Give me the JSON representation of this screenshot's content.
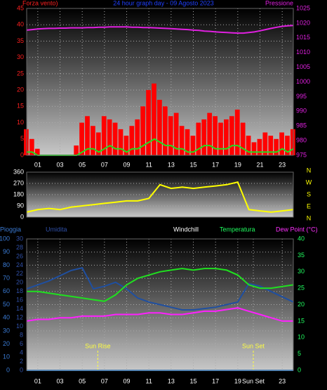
{
  "chart_data": [
    {
      "type": "line",
      "title": "24 hour graph day - 09 Agosto 2023",
      "ylabel": "Forza vento)",
      "y2label": "Pressione",
      "x": [
        0,
        0.5,
        1,
        1.5,
        2,
        2.5,
        3,
        3.5,
        4,
        4.5,
        5,
        5.5,
        6,
        6.5,
        7,
        7.5,
        8,
        8.5,
        9,
        9.5,
        10,
        10.5,
        11,
        11.5,
        12,
        12.5,
        13,
        13.5,
        14,
        14.5,
        15,
        15.5,
        16,
        16.5,
        17,
        17.5,
        18,
        18.5,
        19,
        19.5,
        20,
        20.5,
        21,
        21.5,
        22,
        22.5,
        23,
        23.5,
        24
      ],
      "xlim": [
        0,
        24
      ],
      "xticks": [
        {
          "value": 1,
          "label": "01"
        },
        {
          "value": 3,
          "label": "03"
        },
        {
          "value": 5,
          "label": "05"
        },
        {
          "value": 7,
          "label": "07"
        },
        {
          "value": 9,
          "label": "09"
        },
        11,
        13,
        15,
        17,
        19,
        21,
        23
      ],
      "ylim": [
        0,
        45
      ],
      "yticks": [
        0,
        5,
        10,
        15,
        20,
        25,
        30,
        35,
        40,
        45
      ],
      "ycolor": "#ff2020",
      "y2lim": [
        975,
        1025
      ],
      "y2ticks": [
        975,
        980,
        985,
        990,
        995,
        1000,
        1005,
        1010,
        1015,
        1020,
        1025
      ],
      "y2color": "#e020e0",
      "grid": true,
      "series": [
        {
          "color": "#ff0000",
          "style": "bars",
          "values": [
            8,
            5,
            2,
            0,
            0,
            0,
            0,
            0,
            0,
            3,
            10,
            12,
            9,
            7,
            12,
            11,
            10,
            8,
            6,
            9,
            11,
            15,
            20,
            22,
            17,
            15,
            12,
            13,
            9,
            8,
            6,
            10,
            11,
            13,
            12,
            10,
            11,
            12,
            14,
            10,
            6,
            4,
            5,
            7,
            6,
            5,
            7,
            6,
            8
          ]
        },
        {
          "color": "#20e020",
          "style": "line",
          "values": [
            1,
            1,
            0,
            0,
            0,
            0,
            0,
            0,
            0,
            0,
            1,
            2,
            2,
            1,
            2,
            3,
            2,
            2,
            1,
            2,
            2,
            3,
            4,
            5,
            4,
            3,
            3,
            2,
            2,
            1,
            1,
            2,
            3,
            3,
            2,
            2,
            2,
            3,
            3,
            2,
            1,
            1,
            1,
            1,
            1,
            1,
            2,
            1,
            2
          ]
        },
        {
          "color": "#e020e0",
          "style": "line",
          "axis": "y2",
          "values": [
            1017.6,
            1017.8,
            1018.0,
            1018.1,
            1018.2,
            1018.2,
            1018.3,
            1018.3,
            1018.4,
            1018.4,
            1018.4,
            1018.5,
            1018.5,
            1018.6,
            1018.6,
            1018.7,
            1018.7,
            1018.7,
            1018.7,
            1018.6,
            1018.6,
            1018.5,
            1018.5,
            1018.4,
            1018.3,
            1018.2,
            1018.1,
            1018.0,
            1017.9,
            1017.8,
            1017.6,
            1017.5,
            1017.3,
            1017.2,
            1017.0,
            1016.9,
            1016.8,
            1016.7,
            1016.6,
            1016.6,
            1016.8,
            1017.0,
            1017.4,
            1017.8,
            1018.2,
            1018.6,
            1018.9,
            1019.1,
            1019.2
          ]
        }
      ]
    },
    {
      "type": "line",
      "direction_labels": [
        "N",
        "W",
        "S",
        "E",
        "N"
      ],
      "x": [
        0,
        1,
        2,
        3,
        4,
        5,
        6,
        7,
        8,
        9,
        10,
        11,
        12,
        13,
        14,
        15,
        16,
        17,
        18,
        19,
        20,
        21,
        22,
        23,
        24
      ],
      "xlim": [
        0,
        24
      ],
      "ylim": [
        0,
        360
      ],
      "yticks": [
        0,
        90,
        180,
        270,
        360
      ],
      "ycolor": "#ffffff",
      "grid": true,
      "series": [
        {
          "color": "#ffff00",
          "style": "line",
          "values": [
            40,
            60,
            70,
            60,
            80,
            90,
            100,
            110,
            120,
            130,
            130,
            150,
            260,
            230,
            240,
            230,
            240,
            250,
            260,
            280,
            60,
            50,
            40,
            50,
            60
          ]
        }
      ]
    },
    {
      "type": "line",
      "labels": [
        {
          "text": "Pioggia",
          "color": "#3a7bd5"
        },
        {
          "text": "Umidita",
          "color": "#3050a8"
        },
        {
          "text": "Windchill",
          "color": "#ffffff"
        },
        {
          "text": "Temperatura",
          "color": "#20ff60"
        },
        {
          "text": "Dew Point (°C)",
          "color": "#ff30ff"
        }
      ],
      "x": [
        0,
        1,
        2,
        3,
        4,
        5,
        6,
        7,
        8,
        9,
        10,
        11,
        12,
        13,
        14,
        15,
        16,
        17,
        18,
        19,
        20,
        21,
        22,
        23,
        24
      ],
      "xlim": [
        0,
        24
      ],
      "xticks": [
        {
          "value": 1,
          "label": "01"
        },
        {
          "value": 3,
          "label": "03"
        },
        {
          "value": 5,
          "label": "05"
        },
        {
          "value": 7,
          "label": "07"
        },
        {
          "value": 9,
          "label": "09"
        },
        11,
        13,
        15,
        17,
        19,
        {
          "value": 20.4,
          "label": "Sun Set"
        },
        23
      ],
      "ylim": [
        0,
        100
      ],
      "yticks": [
        0,
        10,
        20,
        30,
        40,
        50,
        60,
        70,
        80,
        90,
        100
      ],
      "ycolor": "#3a7bd5",
      "y2lim": [
        0,
        30
      ],
      "y2ticks": [
        0,
        2,
        4,
        6,
        8,
        10,
        12,
        14,
        16,
        18,
        20,
        22,
        24,
        26,
        28,
        30
      ],
      "y2color": "#3050a8",
      "y3lim": [
        0,
        40
      ],
      "y3ticks": [
        0,
        5,
        10,
        15,
        20,
        25,
        30,
        35,
        40
      ],
      "y3color": "#20ff60",
      "grid": true,
      "markers": [
        {
          "label": "Sun Rise",
          "x": 6.4,
          "color": "#ffff40"
        },
        {
          "label": "Sun Set",
          "x": 20.4,
          "color": "#ffff40"
        }
      ],
      "series": [
        {
          "color": "#40a0ff",
          "style": "line",
          "axis": "y2",
          "values": [
            0,
            0,
            0,
            0,
            0,
            0,
            0,
            0,
            0,
            0,
            0,
            0,
            0,
            0,
            0,
            0,
            0,
            0,
            0,
            0,
            0,
            0,
            0,
            0,
            0
          ]
        },
        {
          "color": "#1f4fa0",
          "style": "line",
          "values": [
            62,
            65,
            68,
            72,
            76,
            78,
            62,
            64,
            67,
            62,
            55,
            52,
            50,
            48,
            46,
            46,
            47,
            48,
            50,
            52,
            66,
            64,
            60,
            56,
            52
          ]
        },
        {
          "color": "#20e020",
          "style": "line",
          "axis": "y3",
          "values": [
            24,
            24,
            23.5,
            23,
            22.5,
            22,
            21.5,
            21,
            23,
            26,
            28,
            29,
            30,
            30.5,
            31,
            30.5,
            31,
            31,
            30.5,
            29,
            26,
            25,
            25,
            25.5,
            26
          ]
        },
        {
          "color": "#ff20ff",
          "style": "line",
          "axis": "y3",
          "values": [
            15,
            15.5,
            15.5,
            16,
            16,
            16.5,
            16.5,
            16.5,
            17,
            17,
            17,
            17.5,
            17.5,
            17,
            17,
            17.5,
            18,
            18,
            18.5,
            19,
            18,
            17,
            16,
            15,
            15
          ]
        }
      ]
    }
  ]
}
